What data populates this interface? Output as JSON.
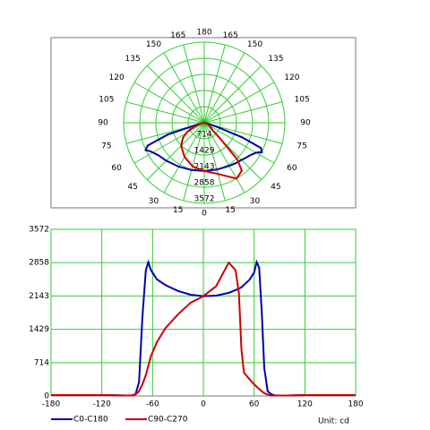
{
  "chart_data": [
    {
      "type": "polar",
      "angle_ticks": [
        0,
        15,
        30,
        45,
        60,
        75,
        90,
        105,
        120,
        135,
        150,
        165,
        180
      ],
      "rlim": [
        0,
        3572
      ],
      "rticks": [
        714,
        1429,
        2143,
        2858,
        3572
      ],
      "grid": true,
      "grid_color": "#33cc33"
    },
    {
      "type": "line",
      "x": [
        -180,
        -150,
        -120,
        -100,
        -90,
        -85,
        -80,
        -76,
        -72,
        -68,
        -65,
        -62,
        -55,
        -45,
        -30,
        -15,
        0,
        15,
        30,
        38,
        42,
        45,
        48,
        55,
        60,
        63,
        66,
        69,
        72,
        76,
        80,
        85,
        90,
        100,
        120,
        150,
        180
      ],
      "series": [
        {
          "name": "C0-C180",
          "color": "#0000aa",
          "values": [
            20,
            20,
            20,
            15,
            10,
            10,
            40,
            300,
            1700,
            2700,
            2870,
            2700,
            2500,
            2380,
            2250,
            2170,
            2140,
            2150,
            2210,
            2270,
            2300,
            2330,
            2380,
            2500,
            2650,
            2870,
            2750,
            1800,
            600,
            100,
            40,
            10,
            10,
            10,
            20,
            20,
            20
          ]
        },
        {
          "name": "C90-C270",
          "color": "#cc0000",
          "values": [
            20,
            20,
            20,
            10,
            10,
            10,
            30,
            100,
            250,
            450,
            650,
            850,
            1150,
            1450,
            1750,
            2000,
            2140,
            2350,
            2858,
            2700,
            2200,
            1000,
            500,
            350,
            250,
            200,
            150,
            100,
            60,
            30,
            10,
            10,
            10,
            10,
            20,
            20,
            20
          ]
        }
      ],
      "xlim": [
        -180,
        180
      ],
      "xticks": [
        -180,
        -120,
        -60,
        0,
        60,
        120,
        180
      ],
      "ylim": [
        0,
        3572
      ],
      "yticks": [
        0,
        714,
        1429,
        2143,
        2858,
        3572
      ],
      "grid": true,
      "grid_color": "#33cc33",
      "unit_label": "Unit: cd"
    }
  ]
}
